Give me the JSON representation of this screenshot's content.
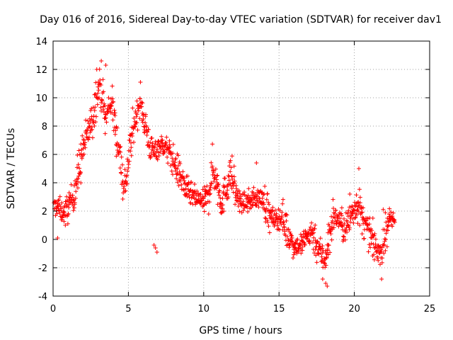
{
  "chart_data": {
    "type": "scatter",
    "title": "Day 016 of 2016, Sidereal Day-to-day VTEC variation (SDTVAR) for receiver dav1",
    "xlabel": "GPS time / hours",
    "ylabel": "SDTVAR / TECUs",
    "xlim": [
      0,
      25
    ],
    "ylim": [
      -4,
      14
    ],
    "xticks": [
      0,
      5,
      10,
      15,
      20,
      25
    ],
    "yticks": [
      -4,
      -2,
      0,
      2,
      4,
      6,
      8,
      10,
      12,
      14
    ],
    "grid": true,
    "marker": "+",
    "series": [
      {
        "name": "dav1",
        "color": "#ff0000",
        "trend": [
          [
            0.05,
            2.2
          ],
          [
            0.3,
            2.4
          ],
          [
            0.5,
            2.0
          ],
          [
            0.8,
            1.8
          ],
          [
            1.1,
            2.6
          ],
          [
            1.4,
            3.2
          ],
          [
            1.7,
            4.8
          ],
          [
            2.0,
            6.5
          ],
          [
            2.3,
            7.5
          ],
          [
            2.6,
            8.5
          ],
          [
            2.9,
            10.4
          ],
          [
            3.1,
            10.8
          ],
          [
            3.3,
            9.8
          ],
          [
            3.5,
            8.3
          ],
          [
            3.7,
            9.4
          ],
          [
            3.9,
            9.6
          ],
          [
            4.1,
            8.2
          ],
          [
            4.3,
            6.8
          ],
          [
            4.5,
            5.6
          ],
          [
            4.7,
            3.6
          ],
          [
            4.9,
            4.6
          ],
          [
            5.1,
            6.5
          ],
          [
            5.3,
            7.7
          ],
          [
            5.5,
            8.6
          ],
          [
            5.7,
            9.4
          ],
          [
            5.9,
            9.3
          ],
          [
            6.1,
            8.2
          ],
          [
            6.4,
            6.6
          ],
          [
            6.7,
            6.1
          ],
          [
            7.0,
            6.6
          ],
          [
            7.3,
            6.7
          ],
          [
            7.6,
            6.3
          ],
          [
            8.0,
            5.5
          ],
          [
            8.4,
            4.6
          ],
          [
            8.8,
            3.6
          ],
          [
            9.2,
            3.1
          ],
          [
            9.6,
            2.8
          ],
          [
            10.0,
            2.6
          ],
          [
            10.3,
            3.2
          ],
          [
            10.6,
            4.9
          ],
          [
            10.9,
            3.9
          ],
          [
            11.2,
            2.6
          ],
          [
            11.5,
            3.6
          ],
          [
            11.8,
            4.8
          ],
          [
            12.1,
            3.4
          ],
          [
            12.4,
            2.6
          ],
          [
            12.8,
            2.6
          ],
          [
            13.2,
            2.8
          ],
          [
            13.6,
            3.0
          ],
          [
            14.0,
            2.8
          ],
          [
            14.4,
            1.6
          ],
          [
            14.8,
            1.4
          ],
          [
            15.2,
            1.6
          ],
          [
            15.6,
            0.4
          ],
          [
            16.0,
            -0.4
          ],
          [
            16.4,
            -0.5
          ],
          [
            16.8,
            0.1
          ],
          [
            17.2,
            0.6
          ],
          [
            17.6,
            -0.6
          ],
          [
            18.0,
            -1.4
          ],
          [
            18.3,
            -0.2
          ],
          [
            18.6,
            1.6
          ],
          [
            19.0,
            1.4
          ],
          [
            19.4,
            0.6
          ],
          [
            19.8,
            1.8
          ],
          [
            20.2,
            2.6
          ],
          [
            20.6,
            1.2
          ],
          [
            21.0,
            0.4
          ],
          [
            21.4,
            -0.6
          ],
          [
            21.8,
            -0.9
          ],
          [
            22.2,
            1.2
          ],
          [
            22.7,
            1.4
          ]
        ],
        "outliers": [
          [
            3.2,
            12.6
          ],
          [
            3.5,
            12.3
          ],
          [
            2.9,
            12.0
          ],
          [
            5.8,
            11.1
          ],
          [
            20.3,
            5.0
          ],
          [
            6.8,
            -0.6
          ],
          [
            6.9,
            -0.9
          ],
          [
            6.7,
            -0.4
          ],
          [
            18.1,
            -3.1
          ],
          [
            18.2,
            -3.3
          ],
          [
            17.9,
            -2.8
          ],
          [
            0.3,
            0.1
          ],
          [
            13.5,
            5.4
          ],
          [
            9.8,
            3.2
          ],
          [
            19.7,
            3.2
          ]
        ]
      }
    ]
  }
}
